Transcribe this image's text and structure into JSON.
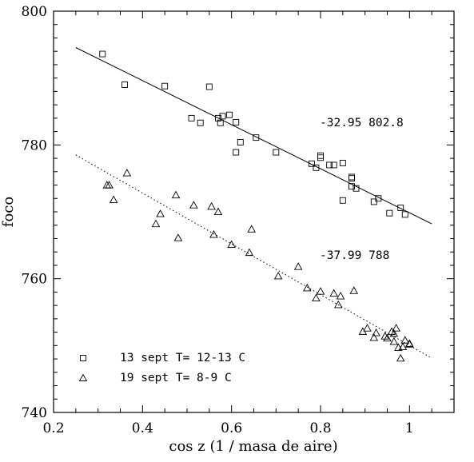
{
  "chart_data": {
    "type": "scatter",
    "xlabel": "cos z  (1 / masa de aire)",
    "ylabel": "foco",
    "xlim": [
      0.2,
      1.1
    ],
    "ylim": [
      740,
      800
    ],
    "x_ticks": [
      0.2,
      0.4,
      0.6,
      0.8,
      1
    ],
    "x_tick_labels": [
      "0.2",
      "0.4",
      "0.6",
      "0.8",
      "1"
    ],
    "y_ticks": [
      740,
      760,
      780,
      800
    ],
    "y_tick_labels": [
      "740",
      "760",
      "780",
      "800"
    ],
    "grid": false,
    "legend_position": "bottom-left",
    "series": [
      {
        "name": "13 sept  T= 12-13 C",
        "marker": "square",
        "points": [
          [
            0.31,
            793.6
          ],
          [
            0.36,
            789.0
          ],
          [
            0.45,
            788.8
          ],
          [
            0.51,
            784.0
          ],
          [
            0.53,
            783.3
          ],
          [
            0.55,
            788.7
          ],
          [
            0.57,
            784.0
          ],
          [
            0.575,
            783.3
          ],
          [
            0.58,
            784.3
          ],
          [
            0.595,
            784.5
          ],
          [
            0.61,
            783.4
          ],
          [
            0.61,
            778.9
          ],
          [
            0.62,
            780.4
          ],
          [
            0.655,
            781.1
          ],
          [
            0.7,
            778.9
          ],
          [
            0.78,
            777.2
          ],
          [
            0.79,
            776.6
          ],
          [
            0.8,
            778.4
          ],
          [
            0.8,
            778.1
          ],
          [
            0.82,
            777.0
          ],
          [
            0.83,
            777.0
          ],
          [
            0.85,
            777.3
          ],
          [
            0.85,
            771.7
          ],
          [
            0.87,
            775.2
          ],
          [
            0.87,
            775.0
          ],
          [
            0.87,
            773.8
          ],
          [
            0.88,
            773.5
          ],
          [
            0.92,
            771.5
          ],
          [
            0.93,
            772.0
          ],
          [
            0.955,
            769.8
          ],
          [
            0.98,
            770.6
          ],
          [
            0.99,
            769.6
          ]
        ],
        "fit": {
          "slope": -32.95,
          "intercept": 802.8,
          "label": "-32.95  802.8",
          "x_from": 0.25,
          "x_to": 1.05
        }
      },
      {
        "name": "19 sept  T= 8-9 C",
        "marker": "triangle",
        "points": [
          [
            0.32,
            774.0
          ],
          [
            0.325,
            774.0
          ],
          [
            0.335,
            771.8
          ],
          [
            0.365,
            775.8
          ],
          [
            0.43,
            768.2
          ],
          [
            0.44,
            769.7
          ],
          [
            0.475,
            772.5
          ],
          [
            0.48,
            766.1
          ],
          [
            0.515,
            771.0
          ],
          [
            0.555,
            770.8
          ],
          [
            0.56,
            766.6
          ],
          [
            0.57,
            770.0
          ],
          [
            0.6,
            765.1
          ],
          [
            0.64,
            763.9
          ],
          [
            0.645,
            767.4
          ],
          [
            0.705,
            760.4
          ],
          [
            0.75,
            761.8
          ],
          [
            0.77,
            758.6
          ],
          [
            0.79,
            757.1
          ],
          [
            0.8,
            758.1
          ],
          [
            0.83,
            757.8
          ],
          [
            0.84,
            756.1
          ],
          [
            0.845,
            757.4
          ],
          [
            0.875,
            758.2
          ],
          [
            0.895,
            752.1
          ],
          [
            0.905,
            752.6
          ],
          [
            0.92,
            751.2
          ],
          [
            0.925,
            751.9
          ],
          [
            0.945,
            751.4
          ],
          [
            0.95,
            751.1
          ],
          [
            0.96,
            752.1
          ],
          [
            0.965,
            751.8
          ],
          [
            0.965,
            750.6
          ],
          [
            0.97,
            752.6
          ],
          [
            0.975,
            749.7
          ],
          [
            0.98,
            748.1
          ],
          [
            0.985,
            749.8
          ],
          [
            0.99,
            750.8
          ],
          [
            1.0,
            750.2
          ],
          [
            1.0,
            750.3
          ]
        ],
        "fit": {
          "slope": -37.99,
          "intercept": 788,
          "label": "-37.99   788",
          "x_from": 0.25,
          "x_to": 1.05
        }
      }
    ]
  }
}
